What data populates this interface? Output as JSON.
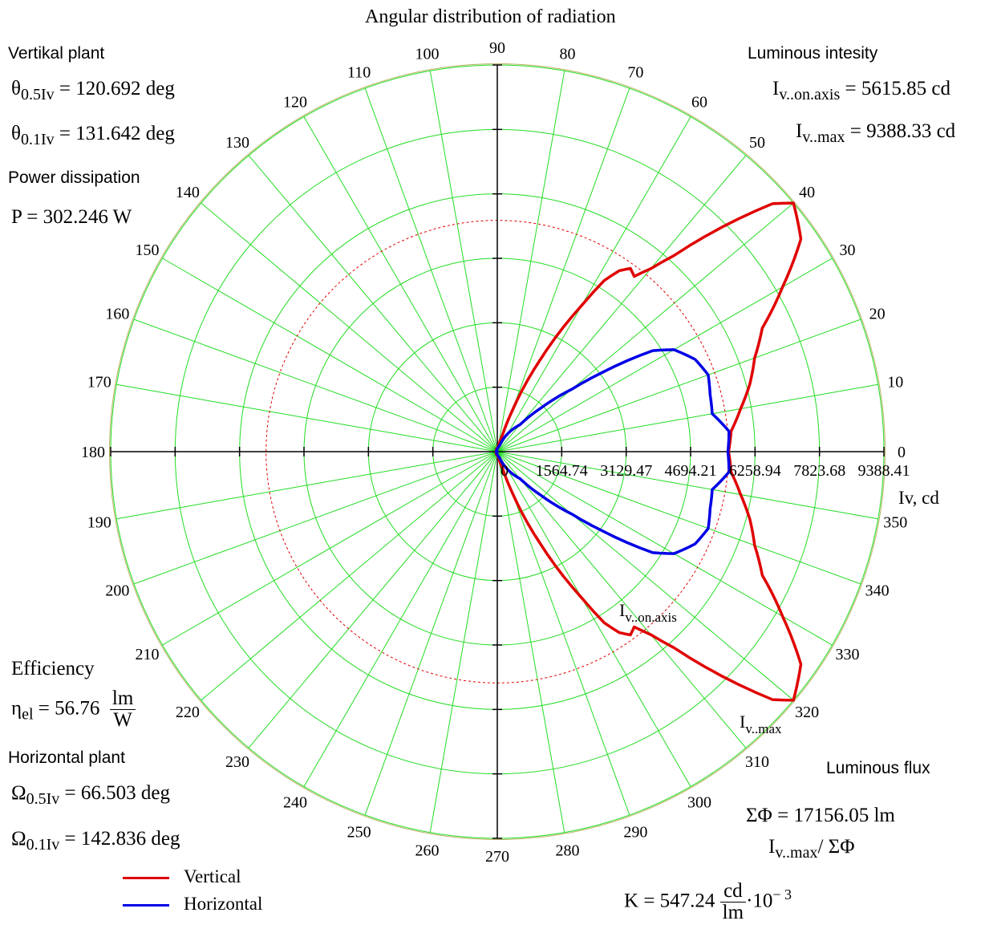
{
  "chart_data": {
    "type": "polar",
    "title": "Angular distribution of radiation",
    "angle_ticks": [
      "0",
      "10",
      "20",
      "30",
      "40",
      "50",
      "60",
      "70",
      "80",
      "90",
      "100",
      "110",
      "120",
      "130",
      "140",
      "150",
      "160",
      "170",
      "180",
      "190",
      "200",
      "210",
      "220",
      "230",
      "240",
      "250",
      "260",
      "270",
      "280",
      "290",
      "300",
      "310",
      "320",
      "330",
      "340",
      "350"
    ],
    "radial_tick_labels": [
      "0",
      "1564.74",
      "3129.47",
      "4694.21",
      "6258.94",
      "7823.68",
      "9388.41"
    ],
    "radial_max": 9388.41,
    "radial_axis_label": "Iv, cd",
    "reference_circle_value": 5615.85,
    "grid": true,
    "series": [
      {
        "name": "Vertical",
        "color": "#e00000",
        "points": [
          [
            0,
            5615.85
          ],
          [
            5,
            5700
          ],
          [
            10,
            6000
          ],
          [
            15,
            6350
          ],
          [
            20,
            6650
          ],
          [
            25,
            7100
          ],
          [
            30,
            8000
          ],
          [
            35,
            9000
          ],
          [
            40,
            9388.33
          ],
          [
            42,
            9000
          ],
          [
            45,
            7700
          ],
          [
            48,
            6400
          ],
          [
            50,
            5800
          ],
          [
            52,
            5400
          ],
          [
            54,
            5500
          ],
          [
            56,
            5300
          ],
          [
            58,
            4900
          ],
          [
            60,
            4100
          ],
          [
            65,
            2450
          ],
          [
            70,
            1050
          ],
          [
            73,
            400
          ],
          [
            78,
            150
          ],
          [
            90,
            90
          ],
          [
            180,
            0
          ],
          [
            270,
            90
          ],
          [
            282,
            150
          ],
          [
            287,
            400
          ],
          [
            290,
            1050
          ],
          [
            295,
            2450
          ],
          [
            300,
            4100
          ],
          [
            302,
            4900
          ],
          [
            304,
            5300
          ],
          [
            306,
            5500
          ],
          [
            308,
            5400
          ],
          [
            310,
            5800
          ],
          [
            312,
            6400
          ],
          [
            315,
            7700
          ],
          [
            318,
            9000
          ],
          [
            320,
            9388.33
          ],
          [
            325,
            9000
          ],
          [
            330,
            8000
          ],
          [
            335,
            7100
          ],
          [
            340,
            6650
          ],
          [
            345,
            6350
          ],
          [
            350,
            6000
          ],
          [
            355,
            5700
          ],
          [
            360,
            5615.85
          ]
        ]
      },
      {
        "name": "Horizontal",
        "color": "#0000e6",
        "points": [
          [
            0,
            5600
          ],
          [
            5,
            5650
          ],
          [
            10,
            5300
          ],
          [
            15,
            5350
          ],
          [
            20,
            5450
          ],
          [
            25,
            5300
          ],
          [
            30,
            4950
          ],
          [
            33,
            4500
          ],
          [
            37,
            3200
          ],
          [
            40,
            2350
          ],
          [
            45,
            1500
          ],
          [
            50,
            850
          ],
          [
            60,
            500
          ],
          [
            70,
            150
          ],
          [
            90,
            60
          ],
          [
            180,
            0
          ],
          [
            270,
            60
          ],
          [
            290,
            150
          ],
          [
            300,
            500
          ],
          [
            310,
            850
          ],
          [
            315,
            1500
          ],
          [
            320,
            2350
          ],
          [
            323,
            3200
          ],
          [
            327,
            4500
          ],
          [
            330,
            4950
          ],
          [
            335,
            5300
          ],
          [
            340,
            5450
          ],
          [
            345,
            5350
          ],
          [
            350,
            5300
          ],
          [
            355,
            5650
          ],
          [
            360,
            5600
          ]
        ]
      }
    ],
    "annotations": [
      "Iv..on.axis",
      "Iv..max"
    ]
  },
  "panel": {
    "vertical_header": "Vertikal plant",
    "theta05": {
      "sym": "θ",
      "sub": "0.5Iv",
      "value": "120.692",
      "unit": "deg"
    },
    "theta01": {
      "sym": "θ",
      "sub": "0.1Iv",
      "value": "131.642",
      "unit": "deg"
    },
    "power_header": "Power dissipation",
    "power": {
      "sym": "P",
      "value": "302.246",
      "unit": "W"
    },
    "efficiency_header": "Efficiency",
    "eta": {
      "sym": "η",
      "sub": "el",
      "value": "56.76",
      "unit_num": "lm",
      "unit_den": "W"
    },
    "horizontal_header": "Horizontal plant",
    "omega05": {
      "sym": "Ω",
      "sub": "0.5Iv",
      "value": "66.503",
      "unit": "deg"
    },
    "omega01": {
      "sym": "Ω",
      "sub": "0.1Iv",
      "value": "142.836",
      "unit": "deg"
    },
    "lum_int_header": "Luminous intesity",
    "iv_axis": {
      "sym": "I",
      "sub": "v..on.axis",
      "value": "5615.85",
      "unit": "cd"
    },
    "iv_max": {
      "sym": "I",
      "sub": "v..max",
      "value": "9388.33",
      "unit": "cd"
    },
    "lum_flux_header": "Luminous flux",
    "flux": {
      "sym": "ΣΦ",
      "value": "17156.05",
      "unit": "lm"
    },
    "ratio": {
      "sym": "I",
      "sub": "v..max",
      "rest": "/ ΣΦ"
    },
    "k": {
      "sym": "K",
      "value": "547.24",
      "unit_num": "cd",
      "unit_den": "lm",
      "exp_base": "·10",
      "exp": "− 3"
    }
  },
  "legend": {
    "vertical": "Vertical",
    "horizontal": "Horizontal"
  }
}
